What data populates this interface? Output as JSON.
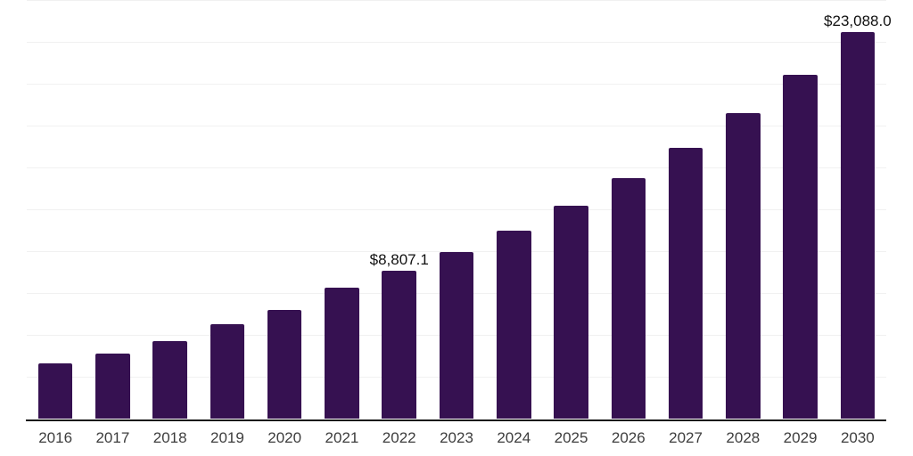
{
  "chart_data": {
    "type": "bar",
    "title": "",
    "xlabel": "",
    "ylabel": "",
    "categories": [
      "2016",
      "2017",
      "2018",
      "2019",
      "2020",
      "2021",
      "2022",
      "2023",
      "2024",
      "2025",
      "2026",
      "2027",
      "2028",
      "2029",
      "2030"
    ],
    "values": [
      3310,
      3900,
      4620,
      5640,
      6470,
      7800,
      8807.1,
      9930,
      11210,
      12710,
      14360,
      16170,
      18240,
      20530,
      23088
    ],
    "data_labels": [
      {
        "category": "2022",
        "text": "$8,807.1"
      },
      {
        "category": "2030",
        "text": "$23,088.0"
      }
    ],
    "ylim": [
      0,
      25000
    ],
    "gridline_step": 2500,
    "grid": true,
    "legend": "none",
    "y_axis_tick_labels_visible": false,
    "colors": {
      "bar": "#361151",
      "axis": "#1a1a1a",
      "gridline": "#f1f1f1",
      "tick_label": "#3d3d3d",
      "data_label": "#111111",
      "background": "#ffffff"
    }
  }
}
